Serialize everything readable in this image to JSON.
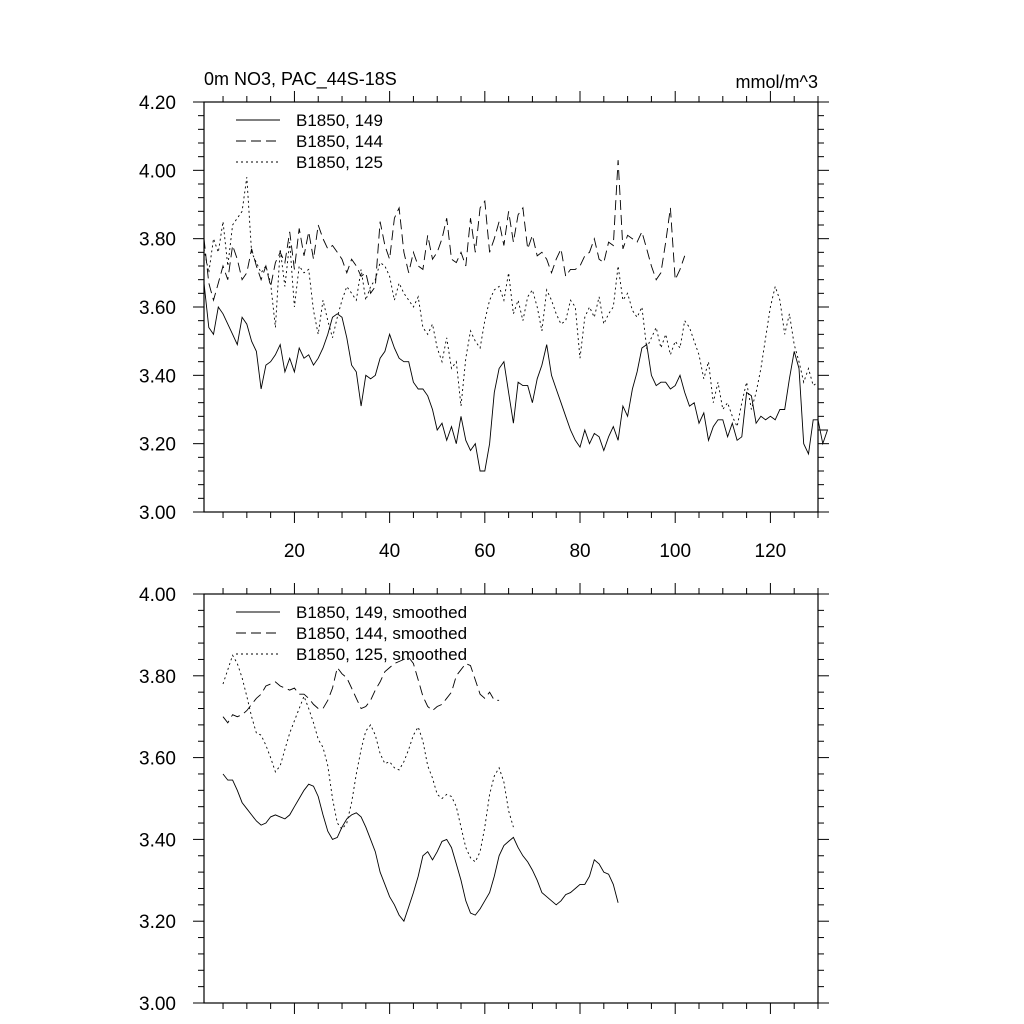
{
  "chart_data": [
    {
      "type": "line",
      "title": "0m NO3, PAC_44S-18S",
      "units": "mmol/m^3",
      "xlim": [
        1,
        130
      ],
      "ylim": [
        3.0,
        4.2
      ],
      "xticks": [
        20,
        40,
        60,
        80,
        100,
        120
      ],
      "xtick_labels": [
        "20",
        "40",
        "60",
        "80",
        "100",
        "120"
      ],
      "yticks": [
        3.0,
        3.2,
        3.4,
        3.6,
        3.8,
        4.0,
        4.2
      ],
      "ytick_labels": [
        "3.00",
        "3.20",
        "3.40",
        "3.60",
        "3.80",
        "4.00",
        "4.20"
      ],
      "legend_position": "top-left",
      "series": [
        {
          "name": "B1850, 149",
          "style": "solid",
          "x_start": 1,
          "values": [
            3.67,
            3.54,
            3.52,
            3.6,
            3.58,
            3.55,
            3.52,
            3.49,
            3.57,
            3.55,
            3.5,
            3.47,
            3.36,
            3.43,
            3.44,
            3.46,
            3.49,
            3.41,
            3.45,
            3.41,
            3.48,
            3.45,
            3.46,
            3.43,
            3.45,
            3.48,
            3.52,
            3.57,
            3.58,
            3.57,
            3.51,
            3.43,
            3.41,
            3.31,
            3.4,
            3.39,
            3.4,
            3.45,
            3.47,
            3.52,
            3.48,
            3.45,
            3.44,
            3.44,
            3.38,
            3.36,
            3.36,
            3.34,
            3.3,
            3.24,
            3.26,
            3.21,
            3.25,
            3.2,
            3.28,
            3.21,
            3.18,
            3.2,
            3.12,
            3.12,
            3.2,
            3.35,
            3.42,
            3.44,
            3.35,
            3.26,
            3.38,
            3.37,
            3.37,
            3.32,
            3.39,
            3.43,
            3.49,
            3.4,
            3.36,
            3.32,
            3.28,
            3.24,
            3.21,
            3.19,
            3.24,
            3.2,
            3.23,
            3.22,
            3.18,
            3.22,
            3.25,
            3.21,
            3.31,
            3.28,
            3.36,
            3.41,
            3.48,
            3.49,
            3.4,
            3.37,
            3.38,
            3.38,
            3.36,
            3.37,
            3.4,
            3.35,
            3.31,
            3.32,
            3.26,
            3.29,
            3.21,
            3.25,
            3.27,
            3.27,
            3.22,
            3.26,
            3.21,
            3.22,
            3.35,
            3.34,
            3.26,
            3.28,
            3.27,
            3.28,
            3.27,
            3.3,
            3.3,
            3.39,
            3.47,
            3.42,
            3.2,
            3.17,
            3.27,
            3.27,
            3.2,
            3.24
          ],
          "extra_x": [
            130
          ],
          "extra_values": [
            3.24
          ]
        },
        {
          "name": "B1850, 144",
          "style": "dashed",
          "x_start": 1,
          "values": [
            3.8,
            3.67,
            3.62,
            3.67,
            3.72,
            3.68,
            3.78,
            3.74,
            3.68,
            3.7,
            3.77,
            3.72,
            3.68,
            3.72,
            3.66,
            3.73,
            3.76,
            3.73,
            3.82,
            3.71,
            3.83,
            3.75,
            3.82,
            3.74,
            3.84,
            3.8,
            3.77,
            3.78,
            3.76,
            3.74,
            3.7,
            3.74,
            3.72,
            3.69,
            3.7,
            3.64,
            3.66,
            3.85,
            3.78,
            3.74,
            3.86,
            3.89,
            3.76,
            3.7,
            3.76,
            3.72,
            3.71,
            3.81,
            3.74,
            3.76,
            3.8,
            3.86,
            3.74,
            3.73,
            3.76,
            3.72,
            3.86,
            3.76,
            3.89,
            3.91,
            3.76,
            3.8,
            3.85,
            3.78,
            3.88,
            3.79,
            3.87,
            3.89,
            3.77,
            3.81,
            3.75,
            3.76,
            3.74,
            3.7,
            3.74,
            3.77,
            3.69,
            3.71,
            3.71,
            3.72,
            3.75,
            3.76,
            3.8,
            3.74,
            3.73,
            3.79,
            3.78,
            4.03,
            3.77,
            3.81,
            3.8,
            3.79,
            3.82,
            3.77,
            3.72,
            3.68,
            3.7,
            3.79,
            3.89,
            3.68,
            3.71,
            3.75
          ]
        },
        {
          "name": "B1850, 125",
          "style": "dotted",
          "x_start": 1,
          "values": [
            3.77,
            3.7,
            3.8,
            3.76,
            3.85,
            3.72,
            3.84,
            3.86,
            3.88,
            3.98,
            3.76,
            3.73,
            3.7,
            3.72,
            3.67,
            3.54,
            3.77,
            3.66,
            3.79,
            3.6,
            3.72,
            3.7,
            3.71,
            3.59,
            3.52,
            3.62,
            3.56,
            3.51,
            3.57,
            3.62,
            3.66,
            3.64,
            3.62,
            3.71,
            3.62,
            3.66,
            3.68,
            3.73,
            3.72,
            3.69,
            3.62,
            3.67,
            3.64,
            3.62,
            3.6,
            3.63,
            3.54,
            3.52,
            3.55,
            3.48,
            3.44,
            3.51,
            3.42,
            3.44,
            3.31,
            3.45,
            3.53,
            3.5,
            3.48,
            3.56,
            3.62,
            3.65,
            3.66,
            3.62,
            3.7,
            3.58,
            3.62,
            3.56,
            3.63,
            3.65,
            3.6,
            3.53,
            3.65,
            3.62,
            3.58,
            3.55,
            3.56,
            3.62,
            3.6,
            3.45,
            3.57,
            3.6,
            3.57,
            3.63,
            3.55,
            3.58,
            3.6,
            3.72,
            3.62,
            3.64,
            3.59,
            3.57,
            3.6,
            3.48,
            3.51,
            3.54,
            3.48,
            3.52,
            3.46,
            3.5,
            3.48,
            3.56,
            3.54,
            3.5,
            3.46,
            3.39,
            3.44,
            3.32,
            3.38,
            3.3,
            3.32,
            3.28,
            3.25,
            3.32,
            3.38,
            3.3,
            3.35,
            3.42,
            3.51,
            3.6,
            3.66,
            3.62,
            3.52,
            3.58,
            3.49,
            3.44,
            3.38,
            3.42,
            3.37,
            3.38
          ]
        }
      ]
    },
    {
      "type": "line",
      "title": "",
      "xlim": [
        1,
        130
      ],
      "ylim": [
        3.0,
        4.0
      ],
      "xticks": [
        20,
        40,
        60,
        80,
        100,
        120
      ],
      "xtick_labels": [],
      "yticks": [
        3.0,
        3.2,
        3.4,
        3.6,
        3.8,
        4.0
      ],
      "ytick_labels": [
        "3.00",
        "3.20",
        "3.40",
        "3.60",
        "3.80",
        "4.00"
      ],
      "legend_position": "top-left",
      "series": [
        {
          "name": "B1850, 149, smoothed",
          "style": "solid",
          "x_start": 5,
          "values": [
            3.56,
            3.545,
            3.545,
            3.52,
            3.49,
            3.475,
            3.46,
            3.445,
            3.435,
            3.44,
            3.455,
            3.46,
            3.455,
            3.45,
            3.46,
            3.48,
            3.5,
            3.52,
            3.535,
            3.53,
            3.505,
            3.46,
            3.42,
            3.4,
            3.405,
            3.43,
            3.45,
            3.46,
            3.465,
            3.455,
            3.43,
            3.4,
            3.37,
            3.32,
            3.29,
            3.26,
            3.24,
            3.215,
            3.2,
            3.235,
            3.27,
            3.31,
            3.36,
            3.37,
            3.35,
            3.37,
            3.395,
            3.4,
            3.38,
            3.34,
            3.3,
            3.25,
            3.22,
            3.215,
            3.23,
            3.25,
            3.27,
            3.31,
            3.36,
            3.385,
            3.395,
            3.405,
            3.38,
            3.36,
            3.345,
            3.325,
            3.3,
            3.27,
            3.26,
            3.25,
            3.24,
            3.25,
            3.265,
            3.27,
            3.28,
            3.29,
            3.29,
            3.31,
            3.35,
            3.34,
            3.32,
            3.315,
            3.29,
            3.245
          ]
        },
        {
          "name": "B1850, 144, smoothed",
          "style": "dashed",
          "x_start": 5,
          "values": [
            3.7,
            3.685,
            3.705,
            3.7,
            3.705,
            3.715,
            3.73,
            3.745,
            3.755,
            3.775,
            3.78,
            3.785,
            3.775,
            3.77,
            3.765,
            3.77,
            3.755,
            3.755,
            3.745,
            3.73,
            3.72,
            3.72,
            3.74,
            3.77,
            3.82,
            3.805,
            3.795,
            3.77,
            3.745,
            3.72,
            3.725,
            3.74,
            3.765,
            3.785,
            3.81,
            3.82,
            3.83,
            3.835,
            3.84,
            3.845,
            3.83,
            3.79,
            3.75,
            3.725,
            3.715,
            3.725,
            3.73,
            3.745,
            3.76,
            3.8,
            3.815,
            3.83,
            3.825,
            3.79,
            3.755,
            3.745,
            3.76,
            3.74,
            3.74
          ]
        },
        {
          "name": "B1850, 125, smoothed",
          "style": "dotted",
          "x_start": 5,
          "values": [
            3.78,
            3.815,
            3.85,
            3.83,
            3.795,
            3.75,
            3.7,
            3.66,
            3.655,
            3.63,
            3.6,
            3.565,
            3.58,
            3.62,
            3.66,
            3.69,
            3.72,
            3.75,
            3.72,
            3.685,
            3.645,
            3.625,
            3.58,
            3.5,
            3.44,
            3.425,
            3.44,
            3.49,
            3.56,
            3.62,
            3.665,
            3.68,
            3.655,
            3.61,
            3.585,
            3.59,
            3.575,
            3.57,
            3.59,
            3.62,
            3.655,
            3.675,
            3.64,
            3.58,
            3.55,
            3.51,
            3.5,
            3.51,
            3.505,
            3.48,
            3.43,
            3.38,
            3.355,
            3.345,
            3.37,
            3.43,
            3.51,
            3.555,
            3.575,
            3.54,
            3.47,
            3.43
          ]
        }
      ]
    }
  ]
}
